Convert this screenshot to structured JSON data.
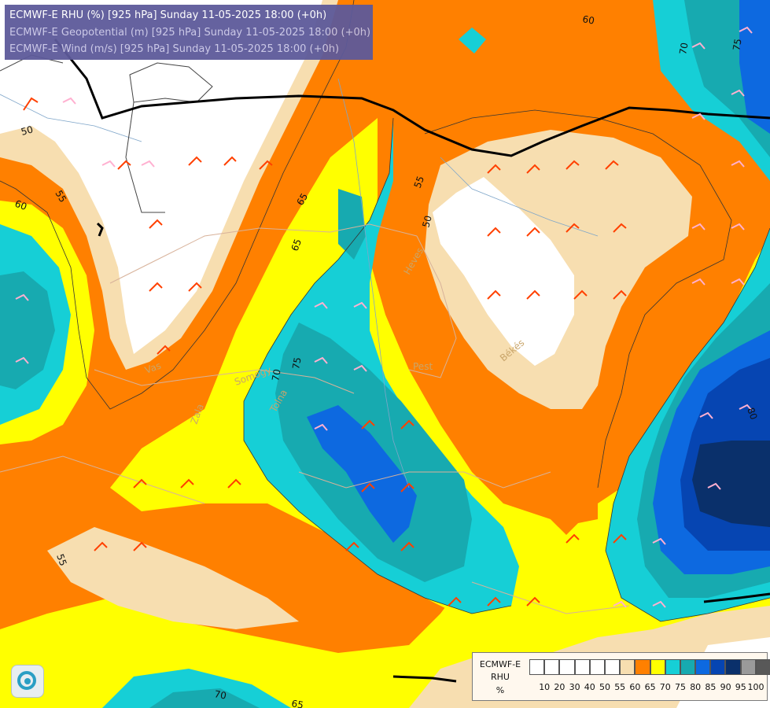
{
  "header": {
    "line1": "ECMWF-E RHU (%) [925 hPa] Sunday 11-05-2025 18:00 (+0h)",
    "line2": "ECMWF-E Geopotential (m) [925 hPa] Sunday 11-05-2025 18:00 (+0h)",
    "line3": "ECMWF-E Wind (m/s) [925 hPa] Sunday 11-05-2025 18:00 (+0h)"
  },
  "legend": {
    "title_lines": [
      "ECMWF-E",
      "RHU",
      "%"
    ],
    "colors": [
      "#ffffff",
      "#ffffff",
      "#ffffff",
      "#ffffff",
      "#ffffff",
      "#ffffff",
      "#f7deb0",
      "#ff8000",
      "#ffff00",
      "#16cfd6",
      "#17aab0",
      "#0d69e0",
      "#0645b2",
      "#0a306b",
      "#9a9a9a",
      "#585858"
    ],
    "ticks": [
      "10",
      "20",
      "30",
      "40",
      "50",
      "55",
      "60",
      "65",
      "70",
      "75",
      "80",
      "85",
      "90",
      "95",
      "100"
    ]
  },
  "map_labels": {
    "contours": [
      "60",
      "50",
      "55",
      "60",
      "65",
      "50",
      "55",
      "70",
      "75",
      "65",
      "80",
      "70",
      "75",
      "55",
      "65",
      "70"
    ],
    "places": [
      "Pest",
      "Vas",
      "Zala",
      "Somogy",
      "Tolna",
      "Heves",
      "Békés"
    ]
  },
  "colors": {
    "rhu_50": "#ffffff",
    "rhu_55": "#f7deb0",
    "rhu_60": "#ff8000",
    "rhu_65": "#ffff00",
    "rhu_70": "#16cfd6",
    "rhu_75": "#17aab0",
    "rhu_80": "#0d69e0",
    "rhu_85": "#0645b2",
    "rhu_90": "#0a306b",
    "wind_barb_warm": "#ff4000",
    "wind_barb_cool": "#ffb0d0",
    "title_box": "#5d5a9a"
  }
}
